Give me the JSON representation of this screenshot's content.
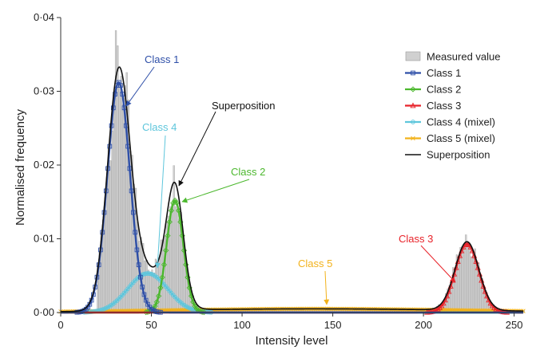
{
  "chart_data": {
    "type": "histogram+line",
    "xlabel": "Intensity level",
    "ylabel": "Normalised frequency",
    "xlim": [
      0,
      255
    ],
    "ylim": [
      0,
      0.04
    ],
    "xticks": [
      0,
      50,
      100,
      150,
      200,
      250
    ],
    "yticks": [
      0,
      0.01,
      0.02,
      0.03,
      0.04
    ],
    "xtick_labels": [
      "0",
      "50",
      "100",
      "150",
      "200",
      "250"
    ],
    "ytick_labels": [
      "0·00",
      "0·01",
      "0·02",
      "0·03",
      "0·04"
    ],
    "grid": false,
    "legend_position": "top-right",
    "legend": [
      {
        "label": "Measured value",
        "key": "measured",
        "marker": "bar",
        "color": "#c8c8c8"
      },
      {
        "label": "Class 1",
        "key": "class1",
        "marker": "square",
        "color": "#2e4fa8"
      },
      {
        "label": "Class 2",
        "key": "class2",
        "marker": "diamond",
        "color": "#4cb82e"
      },
      {
        "label": "Class 3",
        "key": "class3",
        "marker": "triangle",
        "color": "#e8232a"
      },
      {
        "label": "Class 4 (mixel)",
        "key": "class4",
        "marker": "circle",
        "color": "#5ec6dc"
      },
      {
        "label": "Class 5 (mixel)",
        "key": "class5",
        "marker": "cross",
        "color": "#f2b21b"
      },
      {
        "label": "Superposition",
        "key": "superposition",
        "marker": "none",
        "color": "#111111"
      }
    ],
    "components": [
      {
        "name": "Class 1",
        "mean": 32,
        "sd": 6.2,
        "peak": 0.0312,
        "color": "#2e4fa8"
      },
      {
        "name": "Class 2",
        "mean": 63,
        "sd": 4.6,
        "peak": 0.0152,
        "color": "#4cb82e"
      },
      {
        "name": "Class 3",
        "mean": 224,
        "sd": 6.5,
        "peak": 0.0093,
        "color": "#e8232a"
      },
      {
        "name": "Class 4 (mixel)",
        "mean": 48,
        "sd": 11,
        "peak": 0.0053,
        "color": "#5ec6dc"
      },
      {
        "name": "Class 5 (mixel)",
        "mean": 140,
        "sd": 85,
        "peak": 0.0005,
        "color": "#f2b21b"
      }
    ],
    "annotations": [
      {
        "text": "Class 1",
        "color": "#2e4fa8",
        "arrow_to": [
          35,
          0.0225
        ]
      },
      {
        "text": "Class 4",
        "color": "#5ec6dc",
        "arrow_to": [
          52,
          0.0055
        ]
      },
      {
        "text": "Superposition",
        "color": "#111111",
        "arrow_to": [
          62,
          0.0172
        ]
      },
      {
        "text": "Class 2",
        "color": "#4cb82e",
        "arrow_to": [
          64,
          0.0148
        ]
      },
      {
        "text": "Class 5",
        "color": "#f2b21b",
        "arrow_to": [
          147,
          0.0006
        ]
      },
      {
        "text": "Class 3",
        "color": "#e8232a",
        "arrow_to": [
          219,
          0.0042
        ]
      }
    ]
  }
}
